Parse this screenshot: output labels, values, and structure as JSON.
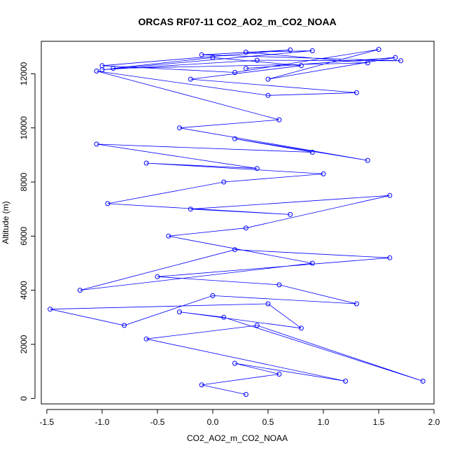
{
  "chart_data": {
    "type": "line",
    "title": "ORCAS RF07-11 CO2_AO2_m_CO2_NOAA",
    "xlabel": "CO2_AO2_m_CO2_NOAA",
    "ylabel": "Altitude (m)",
    "xlim": [
      -1.55,
      2.0
    ],
    "ylim": [
      -200,
      13200
    ],
    "xticks": [
      -1.5,
      -1.0,
      -0.5,
      0.0,
      0.5,
      1.0,
      1.5,
      2.0
    ],
    "xtick_labels": [
      "-1.5",
      "-1.0",
      "-0.5",
      "0.0",
      "0.5",
      "1.0",
      "1.5",
      "2.0"
    ],
    "yticks": [
      0,
      2000,
      4000,
      6000,
      8000,
      10000,
      12000
    ],
    "ytick_labels": [
      "0",
      "2000",
      "4000",
      "6000",
      "8000",
      "10000",
      "12000"
    ],
    "grid": false,
    "legend": "none",
    "series_color": "#0000ff",
    "marker": "open-circle",
    "series": [
      {
        "x": [
          0.3,
          -0.1,
          0.6,
          0.2,
          1.2,
          -0.6,
          0.4,
          1.9,
          0.1,
          -0.3,
          0.8,
          0.5,
          -1.47,
          -0.8,
          0.0,
          1.3,
          0.6,
          -0.5,
          1.6,
          0.2,
          -1.2,
          0.9,
          -0.4,
          0.3,
          1.6,
          -0.2,
          0.7,
          -0.95,
          0.1,
          1.0,
          -0.6,
          0.4,
          -1.05,
          0.9,
          0.2,
          1.4,
          -0.3,
          0.6,
          -1.05,
          0.5,
          1.3,
          -0.2,
          0.8,
          0.0,
          -0.9,
          1.4,
          0.3,
          0.9,
          -1.0,
          0.4,
          1.7,
          -0.1,
          0.7,
          -1.0,
          0.2,
          1.5,
          0.5,
          1.65,
          0.3
        ],
        "y": [
          150,
          500,
          900,
          1300,
          640,
          2200,
          2700,
          640,
          3000,
          3200,
          2600,
          3500,
          3300,
          2700,
          3800,
          3500,
          4200,
          4500,
          5200,
          5500,
          4000,
          5000,
          6000,
          6300,
          7500,
          7000,
          6800,
          7200,
          8000,
          8300,
          8700,
          8500,
          9400,
          9100,
          9600,
          8800,
          10000,
          10300,
          12100,
          11200,
          11300,
          11800,
          12300,
          12600,
          12200,
          12400,
          12800,
          12850,
          12150,
          12500,
          12480,
          12700,
          12880,
          12300,
          12050,
          12900,
          11800,
          12600,
          12200
        ]
      }
    ]
  }
}
